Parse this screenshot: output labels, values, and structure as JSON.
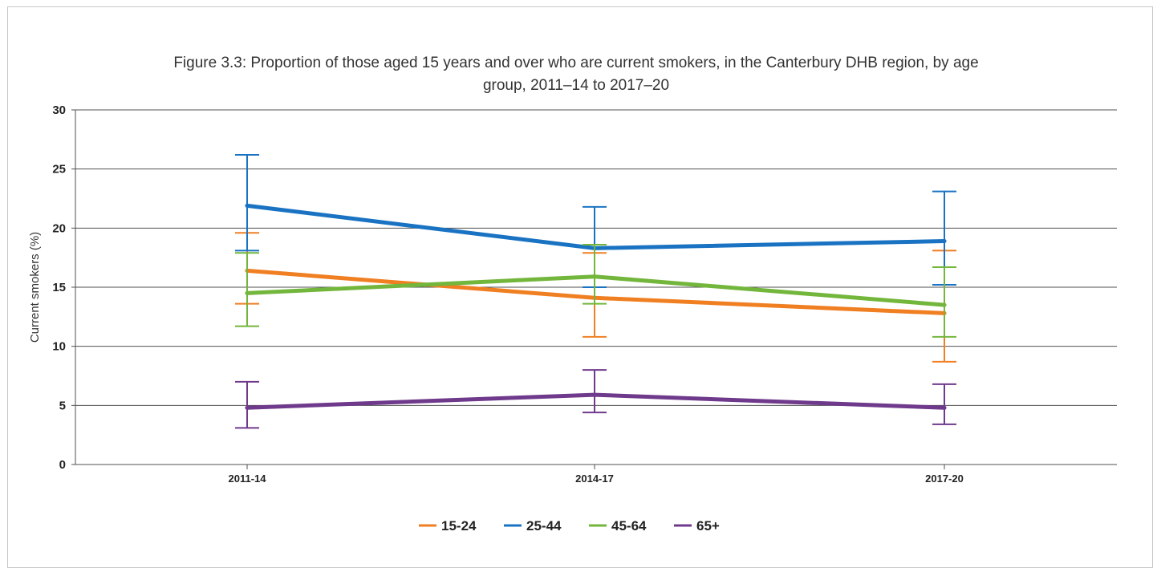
{
  "chart_data": {
    "type": "line",
    "title": "Figure 3.3: Proportion of those aged 15 years and over who are current smokers, in the Canterbury DHB region, by age group, 2011–14 to 2017–20",
    "title_lines": [
      "Figure 3.3: Proportion of those aged 15 years and over who are current smokers, in the Canterbury DHB region, by age",
      "group, 2011–14 to 2017–20"
    ],
    "xlabel": "",
    "ylabel": "Current smokers (%)",
    "categories": [
      "2011-14",
      "2014-17",
      "2017-20"
    ],
    "ylim": [
      0,
      30
    ],
    "yticks": [
      0,
      5,
      10,
      15,
      20,
      25,
      30
    ],
    "grid": true,
    "legend_position": "bottom",
    "error_bars": true,
    "series": [
      {
        "name": "15-24",
        "color": "#f07f22",
        "values": [
          16.4,
          14.1,
          12.8
        ],
        "lower": [
          13.6,
          10.8,
          8.7
        ],
        "upper": [
          19.6,
          17.9,
          18.1
        ]
      },
      {
        "name": "25-44",
        "color": "#1a73c2",
        "values": [
          21.9,
          18.3,
          18.9
        ],
        "lower": [
          18.1,
          15.0,
          15.2
        ],
        "upper": [
          26.2,
          21.8,
          23.1
        ]
      },
      {
        "name": "45-64",
        "color": "#73b63c",
        "values": [
          14.5,
          15.9,
          13.5
        ],
        "lower": [
          11.7,
          13.6,
          10.8
        ],
        "upper": [
          17.9,
          18.6,
          16.7
        ]
      },
      {
        "name": "65+",
        "color": "#6f3a8c",
        "values": [
          4.8,
          5.9,
          4.8
        ],
        "lower": [
          3.1,
          4.4,
          3.4
        ],
        "upper": [
          7.0,
          8.0,
          6.8
        ]
      }
    ]
  }
}
